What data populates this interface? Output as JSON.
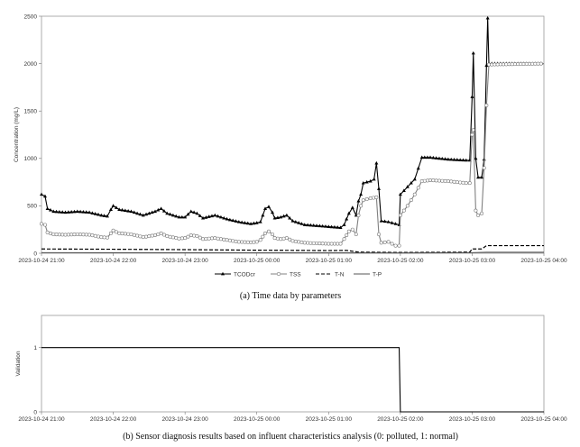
{
  "chart_data": [
    {
      "type": "line",
      "caption": "(a)  Time data by parameters",
      "ylabel": "Concentration (mg/L)",
      "xlim": [
        "2023-10-24 21:00",
        "2023-10-25 04:00"
      ],
      "ylim": [
        0,
        2500
      ],
      "y_ticks": [
        "0",
        "500",
        "1000",
        "1500",
        "2000",
        "2500"
      ],
      "x_ticks": [
        "2023-10-24 21:00",
        "2023-10-24 22:00",
        "2023-10-24 23:00",
        "2023-10-25 00:00",
        "2023-10-25 01:00",
        "2023-10-25 02:00",
        "2023-10-25 03:00",
        "2023-10-25 04:00"
      ],
      "grid": false,
      "legend_position": "bottom",
      "series": [
        {
          "name": "TCODcr",
          "color": "#000000",
          "marker": "triangle",
          "points": [
            [
              "2023-10-24 21:00",
              620
            ],
            [
              "2023-10-24 21:03",
              600
            ],
            [
              "2023-10-24 21:05",
              470
            ],
            [
              "2023-10-24 21:10",
              440
            ],
            [
              "2023-10-24 21:20",
              430
            ],
            [
              "2023-10-24 21:30",
              440
            ],
            [
              "2023-10-24 21:40",
              430
            ],
            [
              "2023-10-24 21:50",
              400
            ],
            [
              "2023-10-24 21:55",
              390
            ],
            [
              "2023-10-24 21:58",
              460
            ],
            [
              "2023-10-24 22:00",
              500
            ],
            [
              "2023-10-24 22:05",
              460
            ],
            [
              "2023-10-24 22:15",
              440
            ],
            [
              "2023-10-24 22:25",
              400
            ],
            [
              "2023-10-24 22:35",
              440
            ],
            [
              "2023-10-24 22:40",
              470
            ],
            [
              "2023-10-24 22:45",
              420
            ],
            [
              "2023-10-24 22:55",
              380
            ],
            [
              "2023-10-24 23:00",
              380
            ],
            [
              "2023-10-24 23:05",
              440
            ],
            [
              "2023-10-24 23:10",
              420
            ],
            [
              "2023-10-24 23:15",
              370
            ],
            [
              "2023-10-24 23:25",
              400
            ],
            [
              "2023-10-24 23:35",
              360
            ],
            [
              "2023-10-24 23:45",
              330
            ],
            [
              "2023-10-24 23:55",
              310
            ],
            [
              "2023-10-25 00:00",
              320
            ],
            [
              "2023-10-25 00:03",
              330
            ],
            [
              "2023-10-25 00:07",
              470
            ],
            [
              "2023-10-25 00:10",
              490
            ],
            [
              "2023-10-25 00:13",
              430
            ],
            [
              "2023-10-25 00:15",
              370
            ],
            [
              "2023-10-25 00:20",
              380
            ],
            [
              "2023-10-25 00:25",
              400
            ],
            [
              "2023-10-25 00:30",
              340
            ],
            [
              "2023-10-25 00:40",
              300
            ],
            [
              "2023-10-25 00:50",
              290
            ],
            [
              "2023-10-25 01:00",
              280
            ],
            [
              "2023-10-25 01:10",
              270
            ],
            [
              "2023-10-25 01:13",
              300
            ],
            [
              "2023-10-25 01:17",
              420
            ],
            [
              "2023-10-25 01:20",
              480
            ],
            [
              "2023-10-25 01:23",
              400
            ],
            [
              "2023-10-25 01:25",
              550
            ],
            [
              "2023-10-25 01:27",
              620
            ],
            [
              "2023-10-25 01:29",
              740
            ],
            [
              "2023-10-25 01:35",
              760
            ],
            [
              "2023-10-25 01:38",
              780
            ],
            [
              "2023-10-25 01:40",
              950
            ],
            [
              "2023-10-25 01:42",
              680
            ],
            [
              "2023-10-25 01:44",
              340
            ],
            [
              "2023-10-25 01:50",
              330
            ],
            [
              "2023-10-25 01:56",
              310
            ],
            [
              "2023-10-25 01:59",
              300
            ],
            [
              "2023-10-25 02:00",
              620
            ],
            [
              "2023-10-25 02:06",
              700
            ],
            [
              "2023-10-25 02:12",
              780
            ],
            [
              "2023-10-25 02:18",
              1010
            ],
            [
              "2023-10-25 02:25",
              1010
            ],
            [
              "2023-10-25 02:40",
              990
            ],
            [
              "2023-10-25 02:55",
              980
            ],
            [
              "2023-10-25 02:58",
              980
            ],
            [
              "2023-10-25 03:00",
              1650
            ],
            [
              "2023-10-25 03:01",
              2110
            ],
            [
              "2023-10-25 03:03",
              1000
            ],
            [
              "2023-10-25 03:05",
              800
            ],
            [
              "2023-10-25 03:08",
              800
            ],
            [
              "2023-10-25 03:10",
              990
            ],
            [
              "2023-10-25 03:12",
              1980
            ],
            [
              "2023-10-25 03:13",
              2480
            ],
            [
              "2023-10-25 03:14",
              2000
            ],
            [
              "2023-10-25 04:00",
              2000
            ]
          ]
        },
        {
          "name": "TSS",
          "color": "#808080",
          "marker": "circle",
          "points": [
            [
              "2023-10-24 21:00",
              310
            ],
            [
              "2023-10-24 21:03",
              300
            ],
            [
              "2023-10-24 21:05",
              220
            ],
            [
              "2023-10-24 21:10",
              200
            ],
            [
              "2023-10-24 21:20",
              195
            ],
            [
              "2023-10-24 21:30",
              200
            ],
            [
              "2023-10-24 21:40",
              195
            ],
            [
              "2023-10-24 21:50",
              170
            ],
            [
              "2023-10-24 21:55",
              165
            ],
            [
              "2023-10-24 21:58",
              210
            ],
            [
              "2023-10-24 22:00",
              240
            ],
            [
              "2023-10-24 22:05",
              210
            ],
            [
              "2023-10-24 22:15",
              200
            ],
            [
              "2023-10-24 22:25",
              170
            ],
            [
              "2023-10-24 22:35",
              190
            ],
            [
              "2023-10-24 22:40",
              210
            ],
            [
              "2023-10-24 22:45",
              180
            ],
            [
              "2023-10-24 22:55",
              155
            ],
            [
              "2023-10-24 23:00",
              160
            ],
            [
              "2023-10-24 23:05",
              190
            ],
            [
              "2023-10-24 23:10",
              180
            ],
            [
              "2023-10-24 23:15",
              150
            ],
            [
              "2023-10-24 23:25",
              160
            ],
            [
              "2023-10-24 23:35",
              140
            ],
            [
              "2023-10-24 23:45",
              120
            ],
            [
              "2023-10-24 23:55",
              115
            ],
            [
              "2023-10-25 00:00",
              120
            ],
            [
              "2023-10-25 00:03",
              140
            ],
            [
              "2023-10-25 00:07",
              210
            ],
            [
              "2023-10-25 00:10",
              230
            ],
            [
              "2023-10-25 00:13",
              200
            ],
            [
              "2023-10-25 00:15",
              160
            ],
            [
              "2023-10-25 00:20",
              150
            ],
            [
              "2023-10-25 00:25",
              160
            ],
            [
              "2023-10-25 00:30",
              130
            ],
            [
              "2023-10-25 00:40",
              110
            ],
            [
              "2023-10-25 00:50",
              105
            ],
            [
              "2023-10-25 01:00",
              100
            ],
            [
              "2023-10-25 01:10",
              100
            ],
            [
              "2023-10-25 01:13",
              150
            ],
            [
              "2023-10-25 01:17",
              230
            ],
            [
              "2023-10-25 01:20",
              250
            ],
            [
              "2023-10-25 01:23",
              200
            ],
            [
              "2023-10-25 01:25",
              400
            ],
            [
              "2023-10-25 01:27",
              500
            ],
            [
              "2023-10-25 01:29",
              560
            ],
            [
              "2023-10-25 01:35",
              580
            ],
            [
              "2023-10-25 01:40",
              590
            ],
            [
              "2023-10-25 01:42",
              200
            ],
            [
              "2023-10-25 01:44",
              110
            ],
            [
              "2023-10-25 01:50",
              120
            ],
            [
              "2023-10-25 01:56",
              80
            ],
            [
              "2023-10-25 01:59",
              80
            ],
            [
              "2023-10-25 02:00",
              400
            ],
            [
              "2023-10-25 02:06",
              500
            ],
            [
              "2023-10-25 02:12",
              620
            ],
            [
              "2023-10-25 02:18",
              760
            ],
            [
              "2023-10-25 02:25",
              770
            ],
            [
              "2023-10-25 02:40",
              760
            ],
            [
              "2023-10-25 02:55",
              740
            ],
            [
              "2023-10-25 02:58",
              740
            ],
            [
              "2023-10-25 03:00",
              1250
            ],
            [
              "2023-10-25 03:01",
              1300
            ],
            [
              "2023-10-25 03:03",
              450
            ],
            [
              "2023-10-25 03:05",
              400
            ],
            [
              "2023-10-25 03:08",
              420
            ],
            [
              "2023-10-25 03:10",
              900
            ],
            [
              "2023-10-25 03:12",
              1560
            ],
            [
              "2023-10-25 03:14",
              1990
            ],
            [
              "2023-10-25 04:00",
              2000
            ]
          ]
        },
        {
          "name": "T-N",
          "color": "#000000",
          "marker": "none",
          "dashed": true,
          "points": [
            [
              "2023-10-24 21:00",
              45
            ],
            [
              "2023-10-24 22:00",
              42
            ],
            [
              "2023-10-24 23:00",
              38
            ],
            [
              "2023-10-25 00:00",
              32
            ],
            [
              "2023-10-25 01:00",
              28
            ],
            [
              "2023-10-25 01:15",
              30
            ],
            [
              "2023-10-25 01:25",
              12
            ],
            [
              "2023-10-25 02:00",
              8
            ],
            [
              "2023-10-25 02:30",
              10
            ],
            [
              "2023-10-25 02:58",
              12
            ],
            [
              "2023-10-25 03:00",
              45
            ],
            [
              "2023-10-25 03:08",
              45
            ],
            [
              "2023-10-25 03:12",
              80
            ],
            [
              "2023-10-25 04:00",
              80
            ]
          ]
        },
        {
          "name": "T-P",
          "color": "#555555",
          "marker": "none",
          "points": [
            [
              "2023-10-24 21:00",
              6
            ],
            [
              "2023-10-24 23:00",
              5
            ],
            [
              "2023-10-25 01:00",
              4
            ],
            [
              "2023-10-25 02:00",
              3
            ],
            [
              "2023-10-25 03:00",
              6
            ],
            [
              "2023-10-25 03:12",
              10
            ],
            [
              "2023-10-25 04:00",
              10
            ]
          ]
        }
      ]
    },
    {
      "type": "line",
      "caption": "(b)  Sensor diagnosis results based on influent characteristics analysis (0: polluted, 1: normal)",
      "ylabel": "Validation",
      "xlim": [
        "2023-10-24 21:00",
        "2023-10-25 04:00"
      ],
      "ylim": [
        0,
        1.5
      ],
      "y_ticks": [
        "0",
        "1"
      ],
      "x_ticks": [
        "2023-10-24 21:00",
        "2023-10-24 22:00",
        "2023-10-24 23:00",
        "2023-10-25 00:00",
        "2023-10-25 01:00",
        "2023-10-25 02:00",
        "2023-10-25 03:00",
        "2023-10-25 04:00"
      ],
      "grid": false,
      "series": [
        {
          "color": "#000000",
          "points": [
            [
              "2023-10-24 21:00",
              1
            ],
            [
              "2023-10-25 01:59",
              1
            ],
            [
              "2023-10-25 02:00",
              0
            ],
            [
              "2023-10-25 04:00",
              0
            ]
          ]
        }
      ]
    }
  ]
}
